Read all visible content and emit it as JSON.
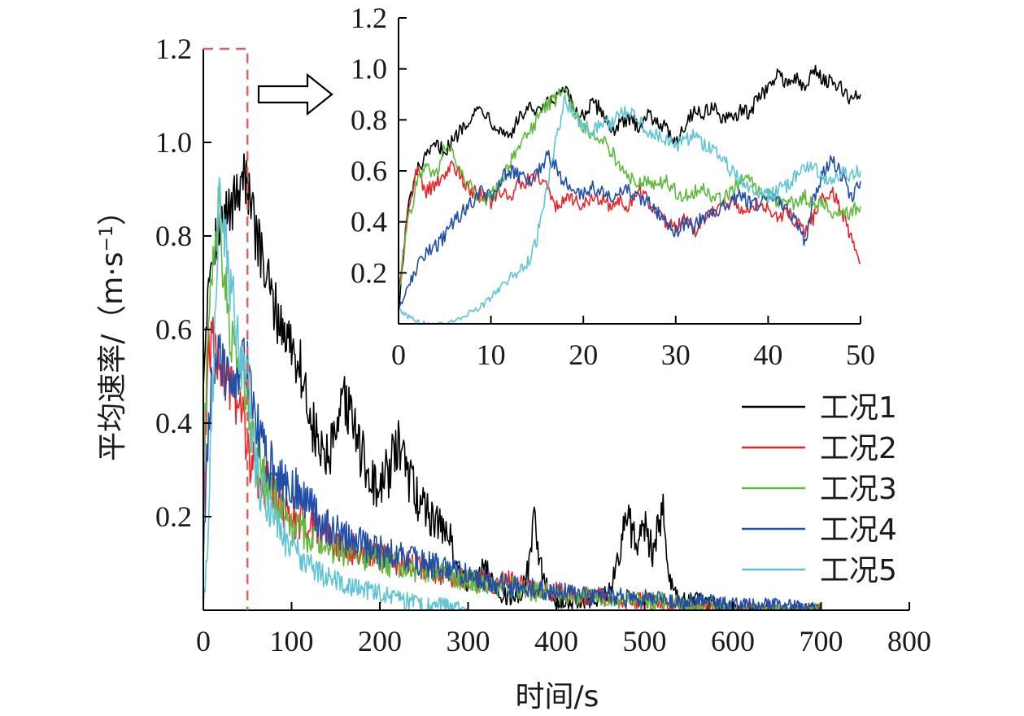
{
  "chart_data": [
    {
      "type": "line",
      "xlabel": "时间/s",
      "ylabel": "平均速率/（m·s⁻¹）",
      "ylabel_parts": {
        "main": "平均速率/（m·s",
        "sup": "−1",
        "close": "）"
      },
      "xlim": [
        0,
        800
      ],
      "ylim": [
        0,
        1.2
      ],
      "xticks": [
        "0",
        "100",
        "200",
        "300",
        "400",
        "500",
        "600",
        "700",
        "800"
      ],
      "yticks": [
        "0.2",
        "0.4",
        "0.6",
        "0.8",
        "1.0",
        "1.2"
      ],
      "zoom_region": {
        "x": [
          0,
          50
        ],
        "y": [
          0,
          1.2
        ],
        "color": "#e06060"
      },
      "legend_position": "right",
      "series": [
        {
          "name": "工况1",
          "color": "#000000",
          "x": [
            0,
            5,
            10,
            15,
            20,
            25,
            30,
            35,
            40,
            45,
            50,
            55,
            60,
            70,
            80,
            90,
            100,
            110,
            120,
            130,
            140,
            150,
            160,
            170,
            180,
            190,
            200,
            210,
            220,
            230,
            240,
            250,
            260,
            270,
            280,
            290,
            300,
            310,
            320,
            330,
            340,
            350,
            360,
            370,
            375,
            380,
            390,
            400,
            420,
            440,
            460,
            470,
            480,
            490,
            500,
            510,
            520,
            530,
            540,
            560,
            580,
            600,
            650,
            700
          ],
          "y": [
            0.5,
            0.7,
            0.78,
            0.8,
            0.82,
            0.84,
            0.86,
            0.88,
            0.9,
            0.95,
            0.9,
            0.85,
            0.8,
            0.72,
            0.65,
            0.6,
            0.57,
            0.52,
            0.42,
            0.35,
            0.32,
            0.36,
            0.45,
            0.4,
            0.33,
            0.28,
            0.25,
            0.3,
            0.35,
            0.3,
            0.25,
            0.22,
            0.2,
            0.18,
            0.15,
            0.08,
            0.06,
            0.07,
            0.09,
            0.05,
            0.03,
            0.02,
            0.04,
            0.1,
            0.25,
            0.12,
            0.04,
            0.02,
            0.02,
            0.02,
            0.04,
            0.12,
            0.2,
            0.15,
            0.18,
            0.12,
            0.22,
            0.05,
            0.02,
            0.02,
            0.01,
            0.0,
            0.0,
            0.0
          ]
        },
        {
          "name": "工况2",
          "color": "#e8262a",
          "x": [
            0,
            5,
            10,
            15,
            20,
            25,
            30,
            35,
            40,
            45,
            50,
            55,
            60,
            70,
            80,
            90,
            100,
            110,
            120,
            130,
            140,
            150,
            170,
            190,
            210,
            230,
            250,
            270,
            290,
            310,
            330,
            350,
            370,
            390,
            410,
            430,
            450,
            470,
            490,
            510,
            530,
            550,
            570,
            600,
            650,
            700
          ],
          "y": [
            0.2,
            0.55,
            0.58,
            0.55,
            0.52,
            0.5,
            0.48,
            0.46,
            0.44,
            0.4,
            0.35,
            0.32,
            0.3,
            0.27,
            0.25,
            0.22,
            0.2,
            0.19,
            0.18,
            0.17,
            0.16,
            0.14,
            0.13,
            0.12,
            0.11,
            0.1,
            0.09,
            0.08,
            0.07,
            0.06,
            0.06,
            0.06,
            0.05,
            0.04,
            0.04,
            0.03,
            0.03,
            0.02,
            0.02,
            0.02,
            0.01,
            0.01,
            0.01,
            0.0,
            0.0,
            0.0
          ]
        },
        {
          "name": "工况3",
          "color": "#5fba3c",
          "x": [
            0,
            5,
            10,
            15,
            18,
            20,
            25,
            30,
            35,
            40,
            45,
            50,
            55,
            60,
            70,
            80,
            90,
            100,
            110,
            120,
            130,
            140,
            150,
            170,
            190,
            210,
            230,
            250,
            270,
            290,
            310,
            330,
            350,
            370,
            390,
            410,
            430,
            450,
            470,
            490,
            510,
            530,
            550,
            570,
            600,
            650,
            700
          ],
          "y": [
            0.3,
            0.6,
            0.75,
            0.8,
            0.9,
            0.78,
            0.7,
            0.6,
            0.55,
            0.52,
            0.5,
            0.46,
            0.38,
            0.32,
            0.27,
            0.24,
            0.21,
            0.18,
            0.17,
            0.16,
            0.15,
            0.14,
            0.13,
            0.12,
            0.11,
            0.1,
            0.09,
            0.08,
            0.08,
            0.07,
            0.06,
            0.05,
            0.05,
            0.04,
            0.04,
            0.03,
            0.03,
            0.03,
            0.02,
            0.02,
            0.02,
            0.02,
            0.01,
            0.01,
            0.0,
            0.0,
            0.0
          ]
        },
        {
          "name": "工况4",
          "color": "#1f4fa8",
          "x": [
            0,
            5,
            10,
            15,
            20,
            25,
            30,
            35,
            40,
            45,
            50,
            55,
            60,
            70,
            80,
            90,
            100,
            110,
            120,
            130,
            140,
            150,
            170,
            190,
            210,
            230,
            250,
            270,
            290,
            310,
            330,
            350,
            370,
            390,
            410,
            430,
            450,
            470,
            490,
            510,
            530,
            550,
            570,
            600,
            650,
            700
          ],
          "y": [
            0.1,
            0.35,
            0.5,
            0.55,
            0.55,
            0.5,
            0.52,
            0.45,
            0.48,
            0.55,
            0.52,
            0.45,
            0.4,
            0.34,
            0.3,
            0.28,
            0.27,
            0.25,
            0.22,
            0.2,
            0.18,
            0.17,
            0.15,
            0.13,
            0.12,
            0.11,
            0.1,
            0.09,
            0.08,
            0.07,
            0.06,
            0.05,
            0.05,
            0.04,
            0.04,
            0.03,
            0.03,
            0.03,
            0.02,
            0.03,
            0.02,
            0.02,
            0.02,
            0.01,
            0.01,
            0.0
          ]
        },
        {
          "name": "工况5",
          "color": "#5fc4d4",
          "x": [
            0,
            5,
            10,
            15,
            18,
            20,
            25,
            30,
            35,
            40,
            45,
            50,
            55,
            60,
            70,
            80,
            90,
            100,
            110,
            120,
            130,
            140,
            150,
            170,
            190,
            210,
            230,
            250,
            270,
            300
          ],
          "y": [
            0.0,
            0.15,
            0.45,
            0.7,
            0.9,
            0.8,
            0.78,
            0.7,
            0.65,
            0.55,
            0.5,
            0.55,
            0.38,
            0.3,
            0.23,
            0.19,
            0.16,
            0.14,
            0.12,
            0.1,
            0.08,
            0.07,
            0.06,
            0.05,
            0.04,
            0.03,
            0.02,
            0.01,
            0.01,
            0.0
          ]
        }
      ]
    },
    {
      "type": "line",
      "xlim": [
        0,
        50
      ],
      "ylim": [
        0,
        1.2
      ],
      "xticks": [
        "0",
        "10",
        "20",
        "30",
        "40",
        "50"
      ],
      "yticks": [
        "0.2",
        "0.4",
        "0.6",
        "0.8",
        "1.0",
        "1.2"
      ],
      "series": [
        {
          "name": "工况1",
          "color": "#000000",
          "x": [
            0,
            1,
            2,
            3,
            4,
            5,
            6,
            7,
            8,
            9,
            10,
            11,
            12,
            13,
            14,
            15,
            16,
            17,
            18,
            19,
            20,
            21,
            22,
            23,
            24,
            25,
            26,
            27,
            28,
            29,
            30,
            31,
            32,
            33,
            34,
            35,
            36,
            37,
            38,
            39,
            40,
            41,
            42,
            43,
            44,
            45,
            46,
            47,
            48,
            49,
            50
          ],
          "y": [
            0.05,
            0.45,
            0.6,
            0.65,
            0.7,
            0.68,
            0.72,
            0.78,
            0.82,
            0.85,
            0.8,
            0.76,
            0.74,
            0.8,
            0.85,
            0.82,
            0.86,
            0.88,
            0.92,
            0.84,
            0.82,
            0.86,
            0.84,
            0.76,
            0.78,
            0.8,
            0.78,
            0.82,
            0.8,
            0.76,
            0.72,
            0.78,
            0.84,
            0.82,
            0.86,
            0.8,
            0.8,
            0.84,
            0.82,
            0.9,
            0.92,
            0.98,
            0.95,
            0.96,
            0.92,
            1.0,
            0.96,
            0.94,
            0.92,
            0.88,
            0.9
          ]
        },
        {
          "name": "工况2",
          "color": "#e8262a",
          "x": [
            0,
            1,
            2,
            3,
            4,
            5,
            6,
            7,
            8,
            9,
            10,
            11,
            12,
            13,
            14,
            15,
            16,
            17,
            18,
            19,
            20,
            21,
            22,
            23,
            24,
            25,
            26,
            27,
            28,
            29,
            30,
            31,
            32,
            33,
            34,
            35,
            36,
            37,
            38,
            39,
            40,
            41,
            42,
            43,
            44,
            45,
            46,
            47,
            48,
            49,
            50
          ],
          "y": [
            0.1,
            0.45,
            0.6,
            0.52,
            0.55,
            0.58,
            0.62,
            0.56,
            0.52,
            0.5,
            0.48,
            0.52,
            0.5,
            0.55,
            0.56,
            0.58,
            0.54,
            0.46,
            0.5,
            0.48,
            0.46,
            0.5,
            0.48,
            0.46,
            0.48,
            0.46,
            0.52,
            0.48,
            0.44,
            0.4,
            0.38,
            0.42,
            0.36,
            0.4,
            0.44,
            0.46,
            0.48,
            0.46,
            0.44,
            0.48,
            0.46,
            0.42,
            0.44,
            0.4,
            0.36,
            0.42,
            0.5,
            0.52,
            0.44,
            0.34,
            0.24
          ]
        },
        {
          "name": "工况3",
          "color": "#5fba3c",
          "x": [
            0,
            1,
            2,
            3,
            4,
            5,
            6,
            7,
            8,
            9,
            10,
            11,
            12,
            13,
            14,
            15,
            16,
            17,
            18,
            19,
            20,
            21,
            22,
            23,
            24,
            25,
            26,
            27,
            28,
            29,
            30,
            31,
            32,
            33,
            34,
            35,
            36,
            37,
            38,
            39,
            40,
            41,
            42,
            43,
            44,
            45,
            46,
            47,
            48,
            49,
            50
          ],
          "y": [
            0.1,
            0.4,
            0.55,
            0.62,
            0.58,
            0.7,
            0.65,
            0.58,
            0.52,
            0.48,
            0.5,
            0.55,
            0.62,
            0.7,
            0.74,
            0.8,
            0.86,
            0.88,
            0.92,
            0.84,
            0.78,
            0.74,
            0.72,
            0.68,
            0.62,
            0.58,
            0.56,
            0.55,
            0.54,
            0.56,
            0.52,
            0.5,
            0.52,
            0.54,
            0.5,
            0.48,
            0.52,
            0.56,
            0.58,
            0.52,
            0.5,
            0.48,
            0.46,
            0.48,
            0.5,
            0.46,
            0.48,
            0.44,
            0.42,
            0.44,
            0.46
          ]
        },
        {
          "name": "工况4",
          "color": "#1f4fa8",
          "x": [
            0,
            1,
            2,
            3,
            4,
            5,
            6,
            7,
            8,
            9,
            10,
            11,
            12,
            13,
            14,
            15,
            16,
            17,
            18,
            19,
            20,
            21,
            22,
            23,
            24,
            25,
            26,
            27,
            28,
            29,
            30,
            31,
            32,
            33,
            34,
            35,
            36,
            37,
            38,
            39,
            40,
            41,
            42,
            43,
            44,
            45,
            46,
            47,
            48,
            49,
            50
          ],
          "y": [
            0.05,
            0.15,
            0.22,
            0.28,
            0.3,
            0.34,
            0.4,
            0.44,
            0.48,
            0.52,
            0.5,
            0.56,
            0.6,
            0.58,
            0.56,
            0.58,
            0.66,
            0.62,
            0.55,
            0.52,
            0.5,
            0.54,
            0.52,
            0.5,
            0.54,
            0.52,
            0.5,
            0.48,
            0.44,
            0.4,
            0.36,
            0.4,
            0.38,
            0.42,
            0.44,
            0.46,
            0.48,
            0.5,
            0.48,
            0.46,
            0.5,
            0.48,
            0.44,
            0.4,
            0.32,
            0.5,
            0.6,
            0.64,
            0.58,
            0.5,
            0.56
          ]
        },
        {
          "name": "工况5",
          "color": "#5fc4d4",
          "x": [
            0,
            1,
            2,
            3,
            4,
            5,
            6,
            7,
            8,
            9,
            10,
            11,
            12,
            13,
            14,
            15,
            16,
            17,
            18,
            19,
            20,
            21,
            22,
            23,
            24,
            25,
            26,
            27,
            28,
            29,
            30,
            31,
            32,
            33,
            34,
            35,
            36,
            37,
            38,
            39,
            40,
            41,
            42,
            43,
            44,
            45,
            46,
            47,
            48,
            49,
            50
          ],
          "y": [
            0.06,
            0.03,
            0.01,
            0.0,
            0.0,
            0.0,
            0.01,
            0.03,
            0.05,
            0.07,
            0.1,
            0.14,
            0.18,
            0.2,
            0.24,
            0.34,
            0.52,
            0.72,
            0.88,
            0.82,
            0.78,
            0.76,
            0.8,
            0.78,
            0.82,
            0.84,
            0.8,
            0.76,
            0.74,
            0.72,
            0.7,
            0.72,
            0.74,
            0.7,
            0.68,
            0.66,
            0.6,
            0.56,
            0.54,
            0.52,
            0.5,
            0.52,
            0.54,
            0.58,
            0.6,
            0.62,
            0.58,
            0.56,
            0.6,
            0.58,
            0.6
          ]
        }
      ]
    }
  ]
}
